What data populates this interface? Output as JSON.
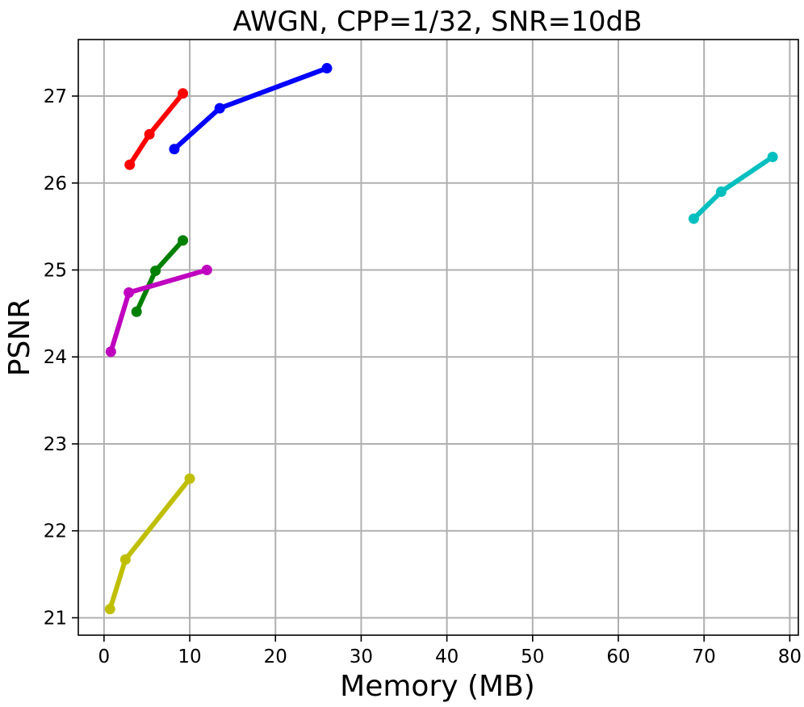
{
  "chart_data": {
    "type": "line",
    "title": "AWGN, CPP=1/32, SNR=10dB",
    "xlabel": "Memory (MB)",
    "ylabel": "PSNR",
    "xlim": [
      -3,
      81
    ],
    "ylim": [
      20.8,
      27.65
    ],
    "xticks": [
      0,
      10,
      20,
      30,
      40,
      50,
      60,
      70,
      80
    ],
    "yticks": [
      21,
      22,
      23,
      24,
      25,
      26,
      27
    ],
    "grid": true,
    "series": [
      {
        "color": "#ff0000",
        "x": [
          3.0,
          5.3,
          9.2
        ],
        "y": [
          26.21,
          26.56,
          27.03
        ]
      },
      {
        "color": "#0000ff",
        "x": [
          8.2,
          13.5,
          26.0
        ],
        "y": [
          26.39,
          26.86,
          27.32
        ]
      },
      {
        "color": "#00bfbf",
        "x": [
          68.8,
          72.0,
          78.0
        ],
        "y": [
          25.59,
          25.9,
          26.3
        ]
      },
      {
        "color": "#008000",
        "x": [
          3.8,
          6.0,
          9.2
        ],
        "y": [
          24.52,
          24.99,
          25.34
        ]
      },
      {
        "color": "#bf00bf",
        "x": [
          0.8,
          2.9,
          12.0
        ],
        "y": [
          24.06,
          24.74,
          25.0
        ]
      },
      {
        "color": "#bfbf00",
        "x": [
          0.7,
          2.5,
          10.0
        ],
        "y": [
          21.1,
          21.67,
          22.6
        ]
      }
    ]
  }
}
